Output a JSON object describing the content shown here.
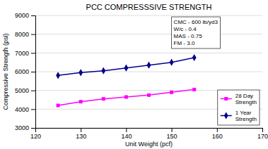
{
  "chart_data": {
    "type": "line",
    "title": "PCC COMPRESSSIVE STRENGTH",
    "x_label": "Unit Weight (pcf)",
    "y_label": "Compressive Strength (psi)",
    "xlim": [
      120,
      170
    ],
    "ylim": [
      3000,
      9000
    ],
    "xticks": [
      120,
      130,
      140,
      150,
      160,
      170
    ],
    "yticks": [
      3000,
      4000,
      5000,
      6000,
      7000,
      8000,
      9000
    ],
    "x": [
      125,
      130,
      135,
      140,
      145,
      150,
      155
    ],
    "series": [
      {
        "name": "28 Day\nStrength",
        "color": "#FF00FF",
        "marker": "square",
        "values": [
          4200,
          4400,
          4550,
          4650,
          4750,
          4900,
          5050
        ]
      },
      {
        "name": "1 Year\nStrength",
        "color": "#00008B",
        "marker": "diamond",
        "values": [
          5800,
          5950,
          6050,
          6200,
          6350,
          6500,
          6750
        ]
      }
    ],
    "annotation": "CMC - 600 lb/yd3\nW/c - 0.4\nMAS - 0.75\nFM - 3.0",
    "grid": "y",
    "legend": "lower right"
  }
}
